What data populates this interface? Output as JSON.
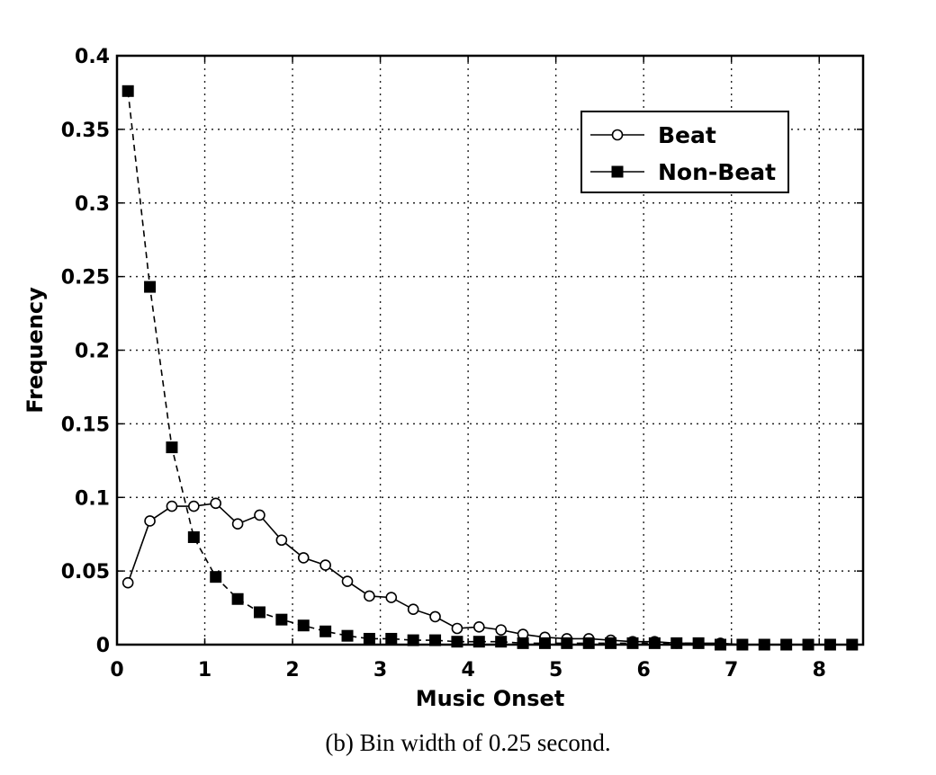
{
  "chart_data": {
    "type": "line",
    "xlabel": "Music Onset",
    "ylabel": "Frequency",
    "caption": "(b) Bin width of 0.25 second.",
    "xlim": [
      0,
      8.5
    ],
    "ylim": [
      0,
      0.4
    ],
    "x_ticks": [
      "0",
      "1",
      "2",
      "3",
      "4",
      "5",
      "6",
      "7",
      "8"
    ],
    "y_ticks": [
      "0",
      "0.05",
      "0.1",
      "0.15",
      "0.2",
      "0.25",
      "0.3",
      "0.35",
      "0.4"
    ],
    "grid": true,
    "legend_position": "top-right",
    "x": [
      0.125,
      0.375,
      0.625,
      0.875,
      1.125,
      1.375,
      1.625,
      1.875,
      2.125,
      2.375,
      2.625,
      2.875,
      3.125,
      3.375,
      3.625,
      3.875,
      4.125,
      4.375,
      4.625,
      4.875,
      5.125,
      5.375,
      5.625,
      5.875,
      6.125,
      6.375,
      6.625,
      6.875,
      7.125,
      7.375,
      7.625,
      7.875,
      8.125,
      8.375
    ],
    "series": [
      {
        "name": "Beat",
        "marker": "open-circle",
        "line": "solid",
        "values": [
          0.042,
          0.084,
          0.094,
          0.094,
          0.096,
          0.082,
          0.088,
          0.071,
          0.059,
          0.054,
          0.043,
          0.033,
          0.032,
          0.024,
          0.019,
          0.011,
          0.012,
          0.01,
          0.007,
          0.005,
          0.004,
          0.004,
          0.003,
          0.002,
          0.002,
          0.001,
          0.001,
          0.001,
          0.0,
          0.0,
          0.0,
          0.0,
          0.0,
          0.0
        ]
      },
      {
        "name": "Non-Beat",
        "marker": "filled-square",
        "line": "dashed",
        "values": [
          0.376,
          0.243,
          0.134,
          0.073,
          0.046,
          0.031,
          0.022,
          0.017,
          0.013,
          0.009,
          0.006,
          0.004,
          0.004,
          0.003,
          0.003,
          0.002,
          0.002,
          0.002,
          0.001,
          0.001,
          0.001,
          0.001,
          0.001,
          0.001,
          0.001,
          0.001,
          0.001,
          0.0,
          0.0,
          0.0,
          0.0,
          0.0,
          0.0,
          0.0
        ]
      }
    ]
  }
}
